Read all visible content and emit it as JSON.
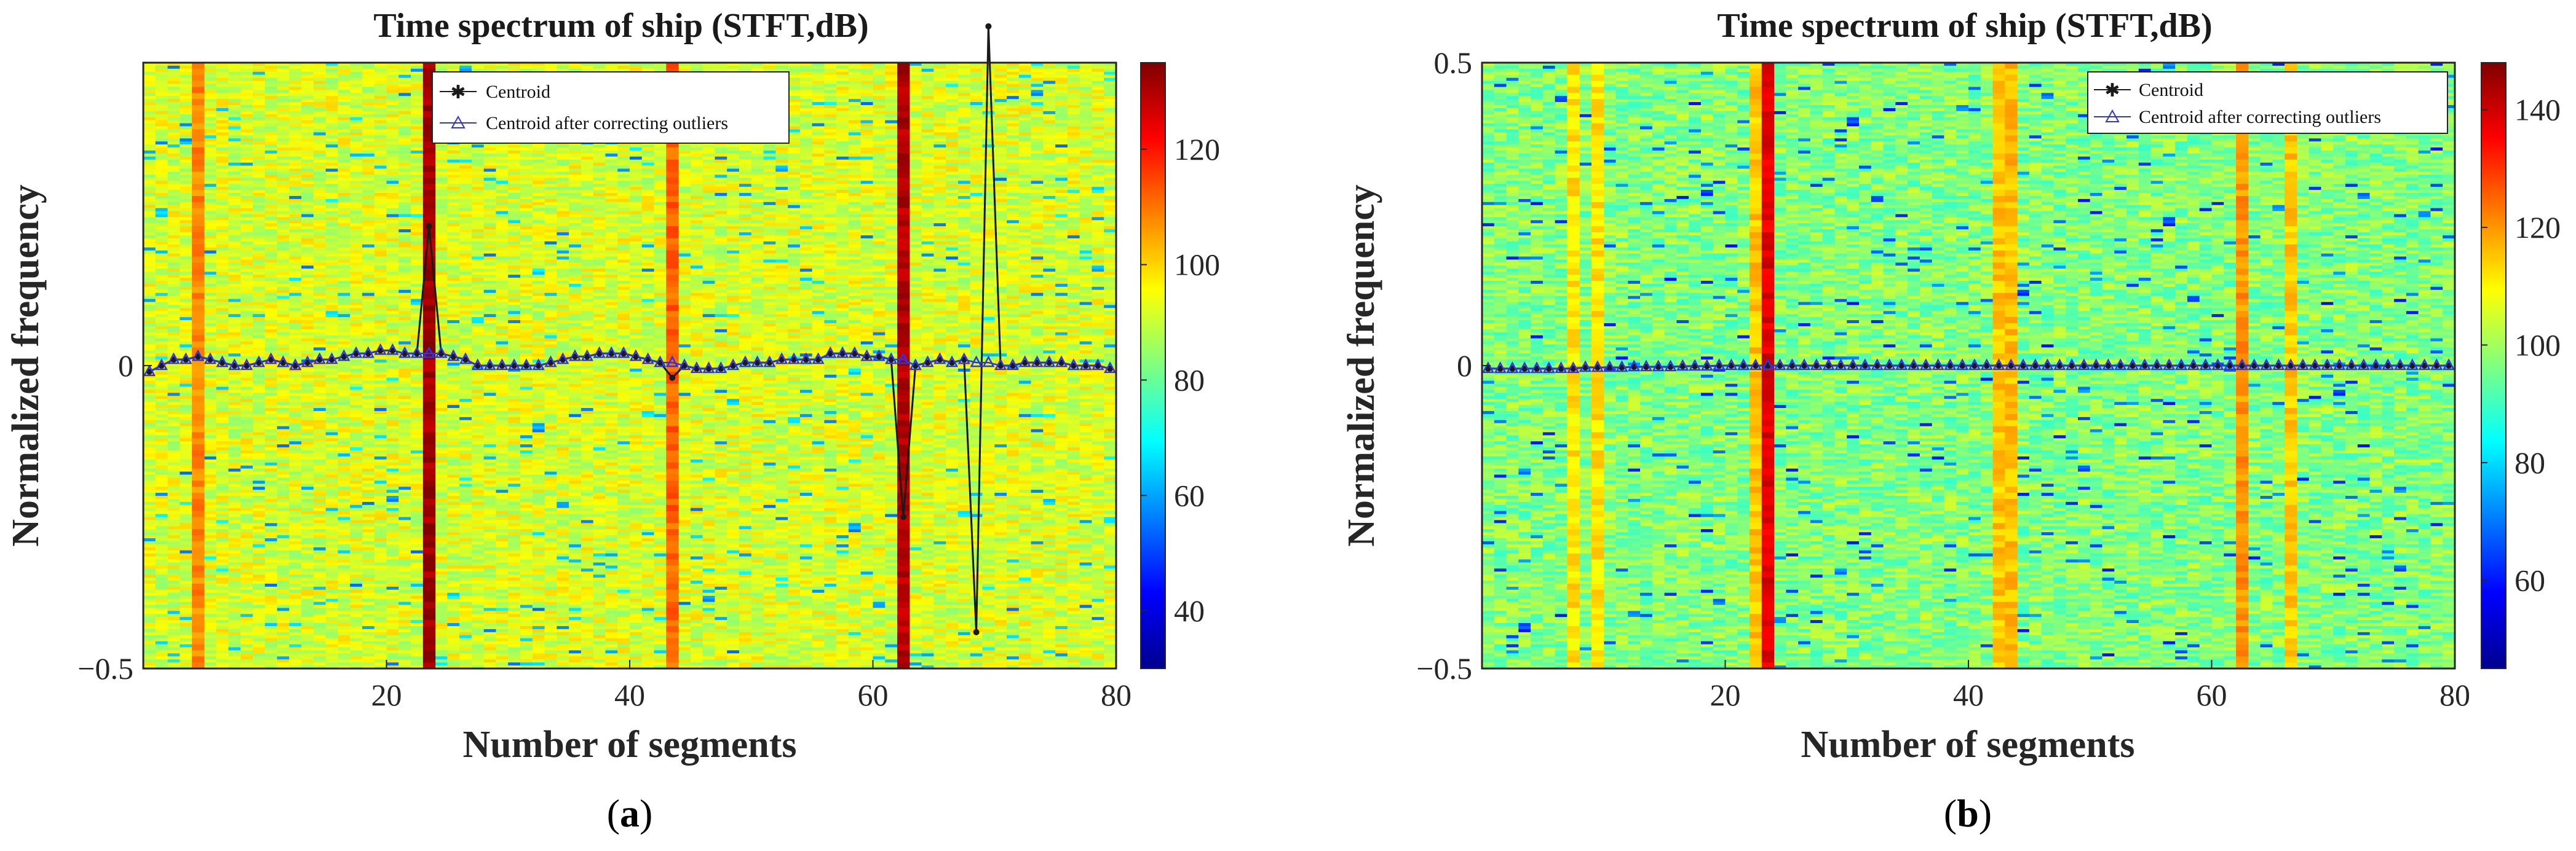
{
  "chart_data": [
    {
      "type": "heatmap",
      "panel_label": "a",
      "title": "Time spectrum of ship (STFT,dB)",
      "xlabel": "Number of segments",
      "ylabel": "Normalized frequency",
      "xlim": [
        0,
        80
      ],
      "ylim": [
        -0.5,
        0.5
      ],
      "x_ticks": [
        20,
        40,
        60,
        80
      ],
      "y_ticks": [
        -0.5,
        0
      ],
      "y_tick_labels": [
        "−0.5",
        "0"
      ],
      "colorbar": {
        "min": 30,
        "max": 135,
        "ticks": [
          40,
          60,
          80,
          100,
          120
        ]
      },
      "background_level_db": 92,
      "high_energy_columns": [
        {
          "segment": 5,
          "level_db": 108
        },
        {
          "segment": 24,
          "level_db": 132
        },
        {
          "segment": 44,
          "level_db": 112
        },
        {
          "segment": 63,
          "level_db": 130
        }
      ],
      "legend": {
        "position": "top-center",
        "entries": [
          "Centroid",
          "Centroid after correcting outliers"
        ]
      },
      "series": [
        {
          "name": "Centroid",
          "color": "#1a1a1a",
          "marker": "star",
          "x": [
            1,
            2,
            3,
            4,
            5,
            6,
            7,
            8,
            9,
            10,
            11,
            12,
            13,
            14,
            15,
            16,
            17,
            18,
            19,
            20,
            21,
            22,
            23,
            24,
            25,
            26,
            27,
            28,
            29,
            30,
            31,
            32,
            33,
            34,
            35,
            36,
            37,
            38,
            39,
            40,
            41,
            42,
            43,
            44,
            45,
            46,
            47,
            48,
            49,
            50,
            51,
            52,
            53,
            54,
            55,
            56,
            57,
            58,
            59,
            60,
            61,
            62,
            63,
            64,
            65,
            66,
            67,
            68,
            69,
            70,
            71,
            72,
            73,
            74,
            75,
            76,
            77,
            78,
            79,
            80
          ],
          "values": [
            -0.01,
            0,
            0.01,
            0.01,
            0.015,
            0.01,
            0.005,
            0,
            0,
            0.005,
            0.01,
            0.005,
            0,
            0.005,
            0.01,
            0.01,
            0.015,
            0.02,
            0.02,
            0.025,
            0.025,
            0.02,
            0.02,
            0.23,
            0.02,
            0.015,
            0.01,
            0,
            0,
            0,
            0,
            0,
            0,
            0.005,
            0.01,
            0.015,
            0.015,
            0.02,
            0.02,
            0.02,
            0.015,
            0.01,
            0.005,
            -0.02,
            0,
            -0.005,
            -0.005,
            -0.005,
            0,
            0.005,
            0.005,
            0.005,
            0.01,
            0.01,
            0.01,
            0.01,
            0.02,
            0.02,
            0.02,
            0.015,
            0.015,
            0.01,
            -0.25,
            0,
            0.005,
            0.01,
            0.005,
            0.01,
            -0.44,
            0.56,
            0,
            0,
            0.005,
            0.005,
            0.005,
            0.005,
            0,
            0,
            0,
            -0.005
          ]
        },
        {
          "name": "Centroid after correcting outliers",
          "color": "#3333dd",
          "marker": "triangle",
          "x": [
            1,
            2,
            3,
            4,
            5,
            6,
            7,
            8,
            9,
            10,
            11,
            12,
            13,
            14,
            15,
            16,
            17,
            18,
            19,
            20,
            21,
            22,
            23,
            24,
            25,
            26,
            27,
            28,
            29,
            30,
            31,
            32,
            33,
            34,
            35,
            36,
            37,
            38,
            39,
            40,
            41,
            42,
            43,
            44,
            45,
            46,
            47,
            48,
            49,
            50,
            51,
            52,
            53,
            54,
            55,
            56,
            57,
            58,
            59,
            60,
            61,
            62,
            63,
            64,
            65,
            66,
            67,
            68,
            69,
            70,
            71,
            72,
            73,
            74,
            75,
            76,
            77,
            78,
            79,
            80
          ],
          "values": [
            -0.01,
            0,
            0.01,
            0.01,
            0.015,
            0.01,
            0.005,
            0,
            0,
            0.005,
            0.01,
            0.005,
            0,
            0.005,
            0.01,
            0.01,
            0.015,
            0.02,
            0.02,
            0.025,
            0.025,
            0.02,
            0.02,
            0.02,
            0.02,
            0.015,
            0.01,
            0,
            0,
            0,
            0,
            0,
            0,
            0.005,
            0.01,
            0.015,
            0.015,
            0.02,
            0.02,
            0.02,
            0.015,
            0.01,
            0.005,
            0.005,
            0,
            -0.005,
            -0.005,
            -0.005,
            0,
            0.005,
            0.005,
            0.005,
            0.01,
            0.01,
            0.01,
            0.01,
            0.02,
            0.02,
            0.02,
            0.015,
            0.015,
            0.01,
            0.01,
            0,
            0.005,
            0.01,
            0.005,
            0.01,
            0.005,
            0.005,
            0,
            0,
            0.005,
            0.005,
            0.005,
            0.005,
            0,
            0,
            0,
            -0.005
          ]
        }
      ]
    },
    {
      "type": "heatmap",
      "panel_label": "b",
      "title": "Time spectrum of ship (STFT,dB)",
      "xlabel": "Number of segments",
      "ylabel": "Normalized frequency",
      "xlim": [
        0,
        80
      ],
      "ylim": [
        -0.5,
        0.5
      ],
      "x_ticks": [
        20,
        40,
        60,
        80
      ],
      "y_ticks": [
        -0.5,
        0,
        0.5
      ],
      "y_tick_labels": [
        "−0.5",
        "0",
        "0.5"
      ],
      "colorbar": {
        "min": 45,
        "max": 148,
        "ticks": [
          60,
          80,
          100,
          120,
          140
        ]
      },
      "background_level_db": 97,
      "high_energy_columns": [
        {
          "segment": 8,
          "level_db": 112
        },
        {
          "segment": 10,
          "level_db": 112
        },
        {
          "segment": 23,
          "level_db": 115
        },
        {
          "segment": 24,
          "level_db": 138
        },
        {
          "segment": 43,
          "level_db": 115
        },
        {
          "segment": 44,
          "level_db": 116
        },
        {
          "segment": 63,
          "level_db": 120
        },
        {
          "segment": 67,
          "level_db": 115
        }
      ],
      "legend": {
        "position": "top-right",
        "entries": [
          "Centroid",
          "Centroid after correcting outliers"
        ]
      },
      "series": [
        {
          "name": "Centroid",
          "color": "#1a1a1a",
          "marker": "star",
          "x": [
            1,
            2,
            3,
            4,
            5,
            6,
            7,
            8,
            9,
            10,
            11,
            12,
            13,
            14,
            15,
            16,
            17,
            18,
            19,
            20,
            21,
            22,
            23,
            24,
            25,
            26,
            27,
            28,
            29,
            30,
            31,
            32,
            33,
            34,
            35,
            36,
            37,
            38,
            39,
            40,
            41,
            42,
            43,
            44,
            45,
            46,
            47,
            48,
            49,
            50,
            51,
            52,
            53,
            54,
            55,
            56,
            57,
            58,
            59,
            60,
            61,
            62,
            63,
            64,
            65,
            66,
            67,
            68,
            69,
            70,
            71,
            72,
            73,
            74,
            75,
            76,
            77,
            78,
            79,
            80
          ],
          "values": [
            -0.005,
            -0.005,
            -0.005,
            -0.005,
            -0.005,
            -0.005,
            -0.005,
            -0.005,
            -0.003,
            -0.003,
            -0.003,
            -0.003,
            -0.002,
            -0.002,
            -0.002,
            -0.002,
            -0.001,
            -0.001,
            -0.001,
            0,
            0,
            0,
            0,
            0,
            0,
            0,
            0,
            0,
            0,
            0,
            0,
            0,
            0,
            0,
            0,
            0,
            0,
            0,
            0,
            0,
            0,
            0,
            0,
            0,
            0,
            0,
            0,
            0,
            0,
            0,
            0,
            0,
            0,
            0,
            0,
            0,
            0,
            0,
            0,
            0,
            0,
            0,
            0,
            0,
            0,
            0,
            0,
            0,
            0,
            0,
            0,
            0,
            0,
            0,
            0,
            0,
            0,
            0,
            0,
            0
          ]
        },
        {
          "name": "Centroid after correcting outliers",
          "color": "#3333dd",
          "marker": "triangle",
          "x": [
            1,
            2,
            3,
            4,
            5,
            6,
            7,
            8,
            9,
            10,
            11,
            12,
            13,
            14,
            15,
            16,
            17,
            18,
            19,
            20,
            21,
            22,
            23,
            24,
            25,
            26,
            27,
            28,
            29,
            30,
            31,
            32,
            33,
            34,
            35,
            36,
            37,
            38,
            39,
            40,
            41,
            42,
            43,
            44,
            45,
            46,
            47,
            48,
            49,
            50,
            51,
            52,
            53,
            54,
            55,
            56,
            57,
            58,
            59,
            60,
            61,
            62,
            63,
            64,
            65,
            66,
            67,
            68,
            69,
            70,
            71,
            72,
            73,
            74,
            75,
            76,
            77,
            78,
            79,
            80
          ],
          "values": [
            -0.005,
            -0.005,
            -0.005,
            -0.005,
            -0.005,
            -0.005,
            -0.005,
            -0.005,
            -0.003,
            -0.003,
            -0.003,
            -0.003,
            -0.002,
            -0.002,
            -0.002,
            -0.002,
            -0.001,
            -0.001,
            -0.001,
            0,
            0,
            0,
            0,
            0,
            0,
            0,
            0,
            0,
            0,
            0,
            0,
            0,
            0,
            0,
            0,
            0,
            0,
            0,
            0,
            0,
            0,
            0,
            0,
            0,
            0,
            0,
            0,
            0,
            0,
            0,
            0,
            0,
            0,
            0,
            0,
            0,
            0,
            0,
            0,
            0,
            0,
            0,
            0,
            0,
            0,
            0,
            0,
            0,
            0,
            0,
            0,
            0,
            0,
            0,
            0,
            0,
            0,
            0,
            0,
            0
          ]
        }
      ]
    }
  ]
}
